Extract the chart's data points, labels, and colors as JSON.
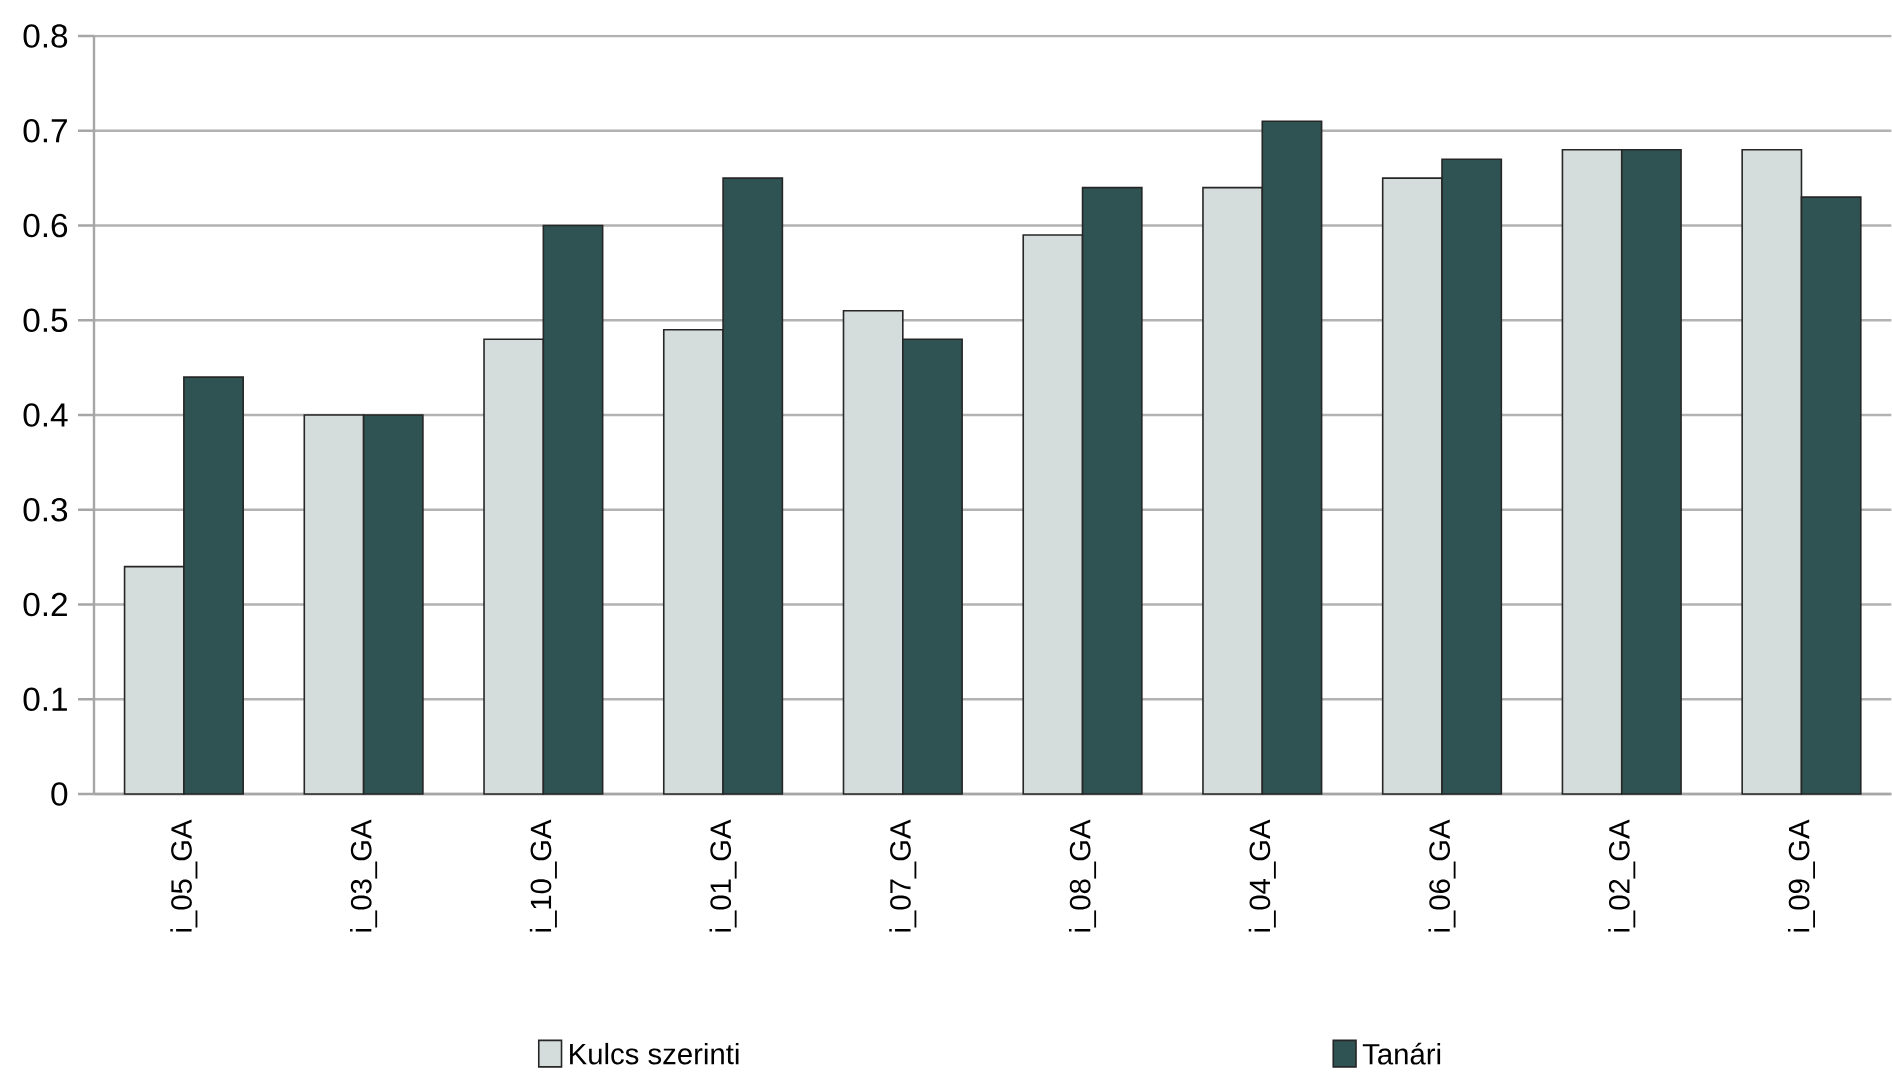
{
  "chart_data": {
    "type": "bar",
    "categories": [
      "i_05_GA",
      "i_03_GA",
      "i_10_GA",
      "i_01_GA",
      "i_07_GA",
      "i_08_GA",
      "i_04_GA",
      "i_06_GA",
      "i_02_GA",
      "i_09_GA"
    ],
    "series": [
      {
        "name": "Kulcs szerinti",
        "color": "#d5dddc",
        "values": [
          0.24,
          0.4,
          0.48,
          0.49,
          0.51,
          0.59,
          0.64,
          0.65,
          0.68,
          0.68
        ]
      },
      {
        "name": "Tanári",
        "color": "#2e5352",
        "values": [
          0.44,
          0.4,
          0.6,
          0.65,
          0.48,
          0.64,
          0.71,
          0.67,
          0.68,
          0.63
        ]
      }
    ],
    "ylim": [
      0,
      0.8
    ],
    "yticks": [
      0,
      0.1,
      0.2,
      0.3,
      0.4,
      0.5,
      0.6,
      0.7,
      0.8
    ],
    "grid": "y",
    "legend": "bottom"
  }
}
